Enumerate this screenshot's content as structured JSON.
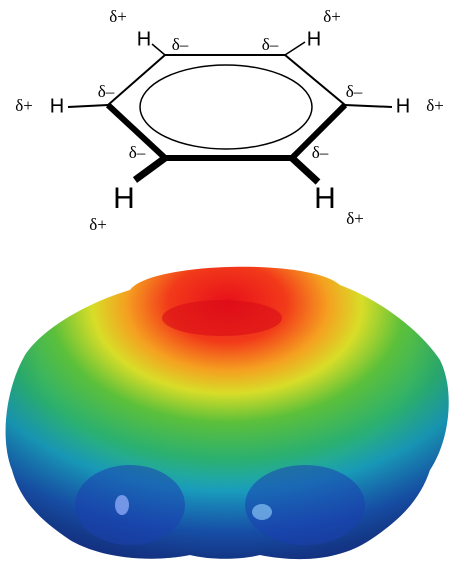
{
  "hydrogens": [
    {
      "symbol": "H",
      "charge": "δ+"
    },
    {
      "symbol": "H",
      "charge": "δ+"
    },
    {
      "symbol": "H",
      "charge": "δ+"
    },
    {
      "symbol": "H",
      "charge": "δ+"
    },
    {
      "symbol": "H",
      "charge": "δ+"
    },
    {
      "symbol": "H",
      "charge": "δ+"
    }
  ],
  "carbons": [
    {
      "charge": "δ–"
    },
    {
      "charge": "δ–"
    },
    {
      "charge": "δ–"
    },
    {
      "charge": "δ–"
    },
    {
      "charge": "δ–"
    },
    {
      "charge": "δ–"
    }
  ]
}
